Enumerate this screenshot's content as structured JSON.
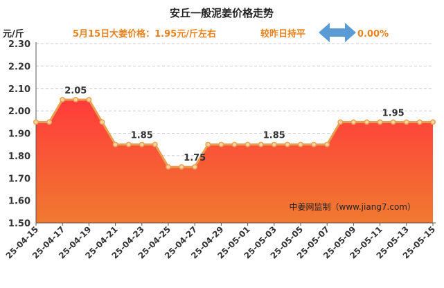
{
  "chart_data": {
    "type": "area",
    "title": "安丘一般泥姜价格走势",
    "subtitle": "5月15日大姜价格：1.95元/斤左右",
    "comparison_text": "较昨日持平",
    "change_text": "0.00%",
    "ylabel": "元/斤",
    "ylim": [
      1.5,
      2.3
    ],
    "yticks": [
      "1.50",
      "1.60",
      "1.70",
      "1.80",
      "1.90",
      "2.00",
      "2.10",
      "2.20",
      "2.30"
    ],
    "grid": true,
    "x": [
      "25-04-15",
      "25-04-16",
      "25-04-17",
      "25-04-18",
      "25-04-19",
      "25-04-20",
      "25-04-21",
      "25-04-22",
      "25-04-23",
      "25-04-24",
      "25-04-25",
      "25-04-26",
      "25-04-27",
      "25-04-28",
      "25-04-29",
      "25-04-30",
      "25-05-01",
      "25-05-02",
      "25-05-03",
      "25-05-04",
      "25-05-05",
      "25-05-06",
      "25-05-07",
      "25-05-08",
      "25-05-09",
      "25-05-10",
      "25-05-11",
      "25-05-12",
      "25-05-13",
      "25-05-14",
      "25-05-15"
    ],
    "xticks": [
      "25-04-15",
      "25-04-17",
      "25-04-19",
      "25-04-21",
      "25-04-23",
      "25-04-25",
      "25-04-27",
      "25-04-29",
      "25-05-01",
      "25-05-03",
      "25-05-05",
      "25-05-07",
      "25-05-09",
      "25-05-11",
      "25-05-13",
      "25-05-15"
    ],
    "values": [
      1.95,
      1.95,
      2.05,
      2.05,
      2.05,
      1.95,
      1.85,
      1.85,
      1.85,
      1.85,
      1.75,
      1.75,
      1.75,
      1.85,
      1.85,
      1.85,
      1.85,
      1.85,
      1.85,
      1.85,
      1.85,
      1.85,
      1.85,
      1.95,
      1.95,
      1.95,
      1.95,
      1.95,
      1.95,
      1.95,
      1.95
    ],
    "annotations": [
      {
        "index": 3,
        "text": "2.05"
      },
      {
        "index": 8,
        "text": "1.85"
      },
      {
        "index": 12,
        "text": "1.75"
      },
      {
        "index": 18,
        "text": "1.85"
      },
      {
        "index": 27,
        "text": "1.95"
      }
    ],
    "watermark": "中姜网监制（www.jiang7.com）",
    "colors": {
      "line": "#e8a050",
      "marker_fill": "#f6d6a8",
      "area_top": "#ff3b3b",
      "area_bottom": "#f07a30",
      "grid": "#cccccc",
      "arrow": "#5b9bd5"
    }
  }
}
